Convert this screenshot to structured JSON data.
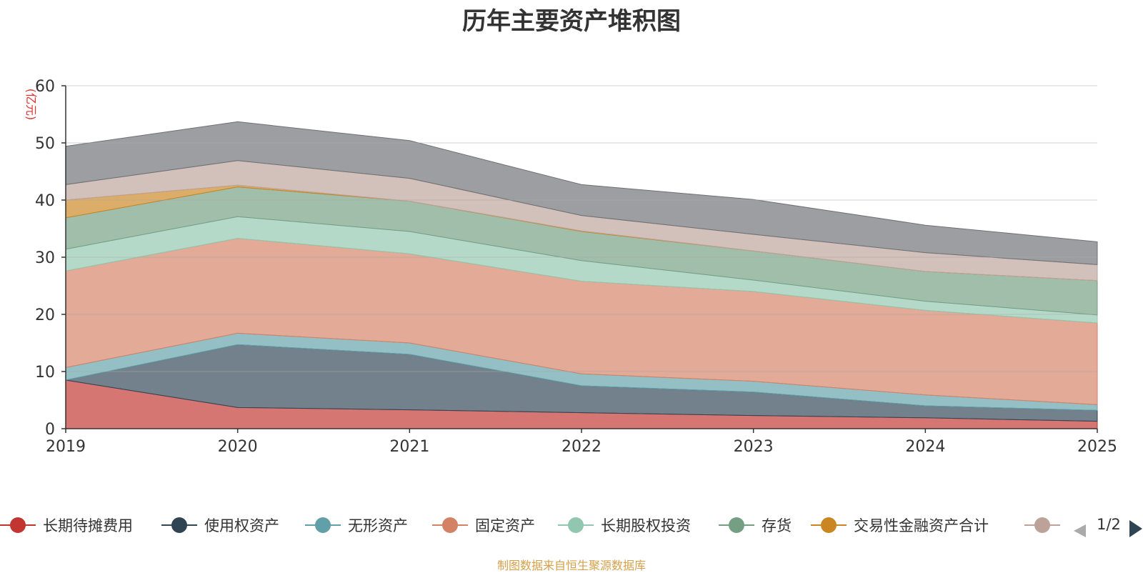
{
  "chart_data": {
    "type": "area",
    "stacked": true,
    "title": "历年主要资产堆积图",
    "ylabel": "(亿元)",
    "ylim": [
      0,
      60
    ],
    "yticks": [
      0,
      10,
      20,
      30,
      40,
      50,
      60
    ],
    "grid": true,
    "categories": [
      "2019",
      "2020",
      "2021",
      "2022",
      "2023",
      "2024",
      "2025"
    ],
    "series": [
      {
        "name": "长期待摊费用",
        "color": "#c23531",
        "values": [
          8.5,
          3.7,
          3.3,
          2.8,
          2.3,
          1.9,
          1.3
        ]
      },
      {
        "name": "使用权资产",
        "color": "#2f4554",
        "values": [
          0.0,
          11.0,
          9.7,
          4.7,
          4.1,
          2.1,
          1.9
        ]
      },
      {
        "name": "无形资产",
        "color": "#61a0a8",
        "values": [
          2.2,
          2.0,
          2.0,
          2.1,
          1.9,
          1.9,
          1.0
        ]
      },
      {
        "name": "固定资产",
        "color": "#d48265",
        "values": [
          16.9,
          16.6,
          15.6,
          16.2,
          15.7,
          14.8,
          14.3
        ]
      },
      {
        "name": "长期股权投资",
        "color": "#91c7ae",
        "values": [
          3.8,
          3.8,
          3.9,
          3.6,
          2.0,
          1.6,
          1.4
        ]
      },
      {
        "name": "存货",
        "color": "#749f83",
        "values": [
          5.5,
          5.2,
          5.3,
          5.1,
          5.1,
          5.2,
          6.0
        ]
      },
      {
        "name": "交易性金融资产合计",
        "color": "#ca8622",
        "values": [
          3.1,
          0.3,
          0.0,
          0.1,
          0.0,
          0.0,
          0.0
        ]
      },
      {
        "name": "",
        "color": "#bda29a",
        "values": [
          2.7,
          4.3,
          4.0,
          2.7,
          2.9,
          3.3,
          2.8
        ]
      },
      {
        "name": "",
        "color": "#6e7074",
        "values": [
          6.7,
          6.8,
          6.6,
          5.4,
          6.1,
          4.8,
          4.0
        ]
      }
    ]
  },
  "legend": {
    "page": "1/2"
  },
  "footer": {
    "source": "制图数据来自恒生聚源数据库"
  }
}
